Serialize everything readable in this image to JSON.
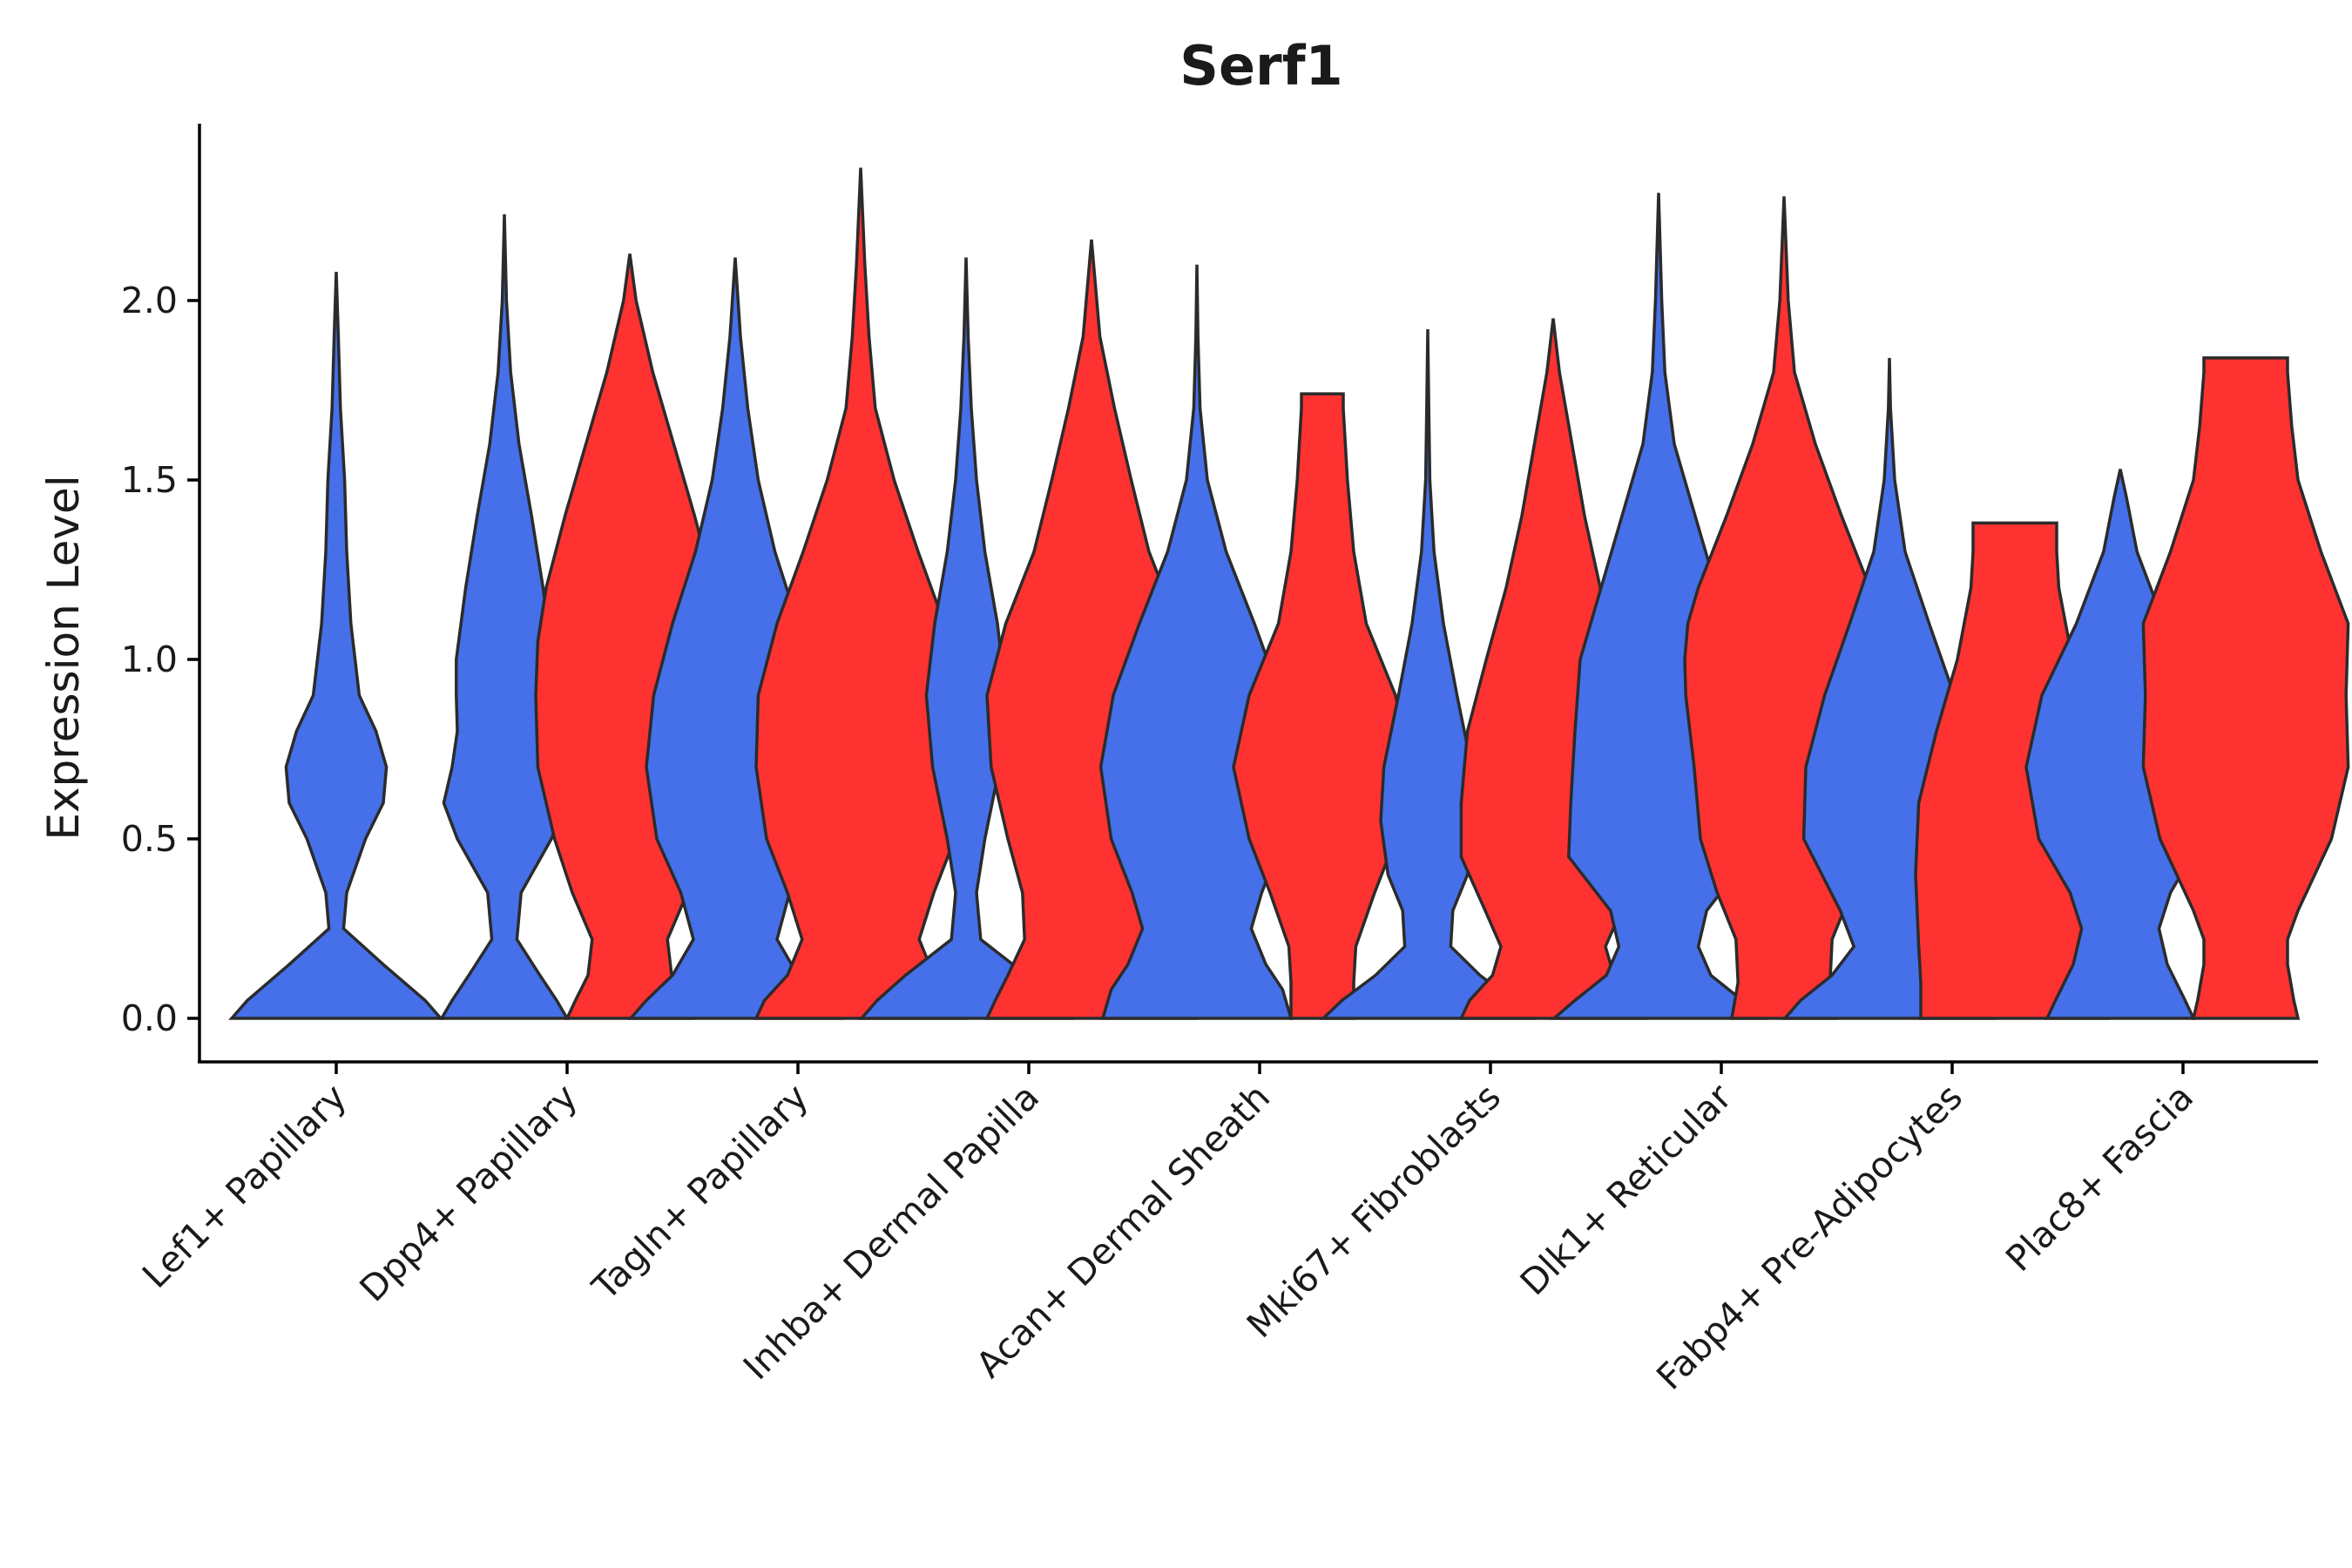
{
  "chart_data": {
    "type": "violin",
    "title": "Serf1",
    "xlabel": "",
    "ylabel": "Expression Level",
    "ylim": [
      -0.12,
      2.5
    ],
    "yticks": [
      "0.0",
      "0.5",
      "1.0",
      "1.5",
      "2.0"
    ],
    "grid": false,
    "legend": "none",
    "categories": [
      "Lef1+ Papillary",
      "Dpp4+ Papillary",
      "Tagln+ Papillary",
      "Inhba+ Dermal Papilla",
      "Acan+ Dermal Sheath",
      "Mki67+ Fibroblasts",
      "Dlk1+ Reticular",
      "Fabp4+ Pre-Adipocytes",
      "Plac8+ Fascia"
    ],
    "colors": {
      "group_a": "#4570EA",
      "group_b": "#FF3232"
    },
    "series": [
      {
        "group": "group_a",
        "values": [
          2.08,
          2.24,
          2.12,
          2.12,
          2.1,
          1.92,
          2.3,
          1.84,
          1.53
        ]
      },
      {
        "group": "group_b",
        "values": [
          null,
          2.13,
          2.37,
          2.17,
          1.74,
          1.95,
          2.29,
          1.38,
          1.84
        ]
      }
    ]
  }
}
